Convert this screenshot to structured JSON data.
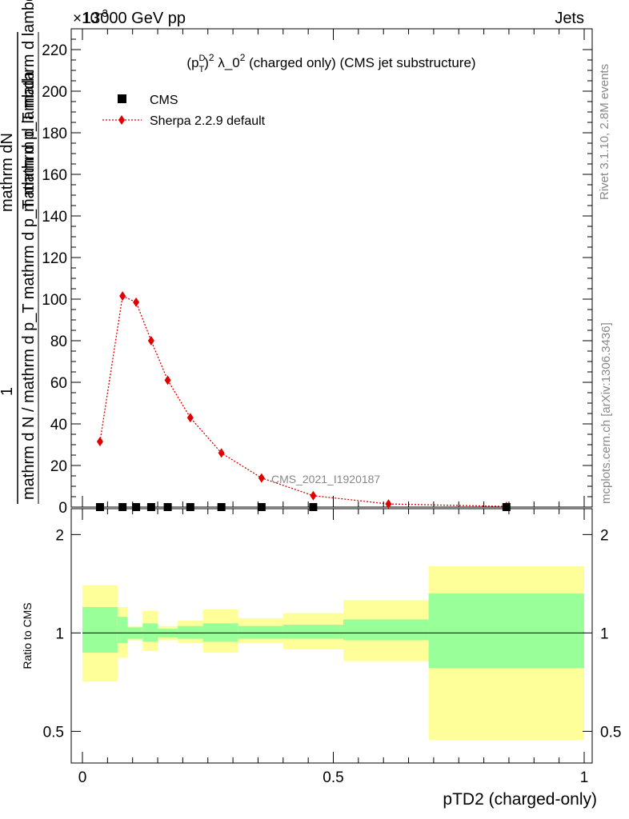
{
  "header": {
    "left": "13000 GeV pp",
    "right": "Jets",
    "multiplier": "×10",
    "multiplier_exp": "-3"
  },
  "side_labels": {
    "rivet": "Rivet 3.1.10,  2.8M events",
    "mcplots": "mcplots.cern.ch [arXiv:1306.3436]"
  },
  "plot_title": {
    "p": "(p",
    "sup_d": "D",
    "sub_t": "T",
    "rest1": ")",
    "sup2": "2",
    "rest2": " λ_0",
    "sup3": "2",
    "rest3": " (charged only) (CMS jet substructure)"
  },
  "ylabel": {
    "num": "mathrm dN",
    "num_full": "mathrm d p_T mathrm d lambda",
    "num_T": "T",
    "one": "1",
    "den": "mathrm d N / mathrm d p_T mathrm d p_T mathrm d lambda"
  },
  "analysis_tag": "CMS_2021_I1920187",
  "ratio_ylabel": "Ratio to CMS",
  "xlabel": "pTD2 (charged-only)",
  "legend": {
    "cms": "CMS",
    "sherpa": "Sherpa 2.2.9 default"
  },
  "colors": {
    "sherpa": "#e00000",
    "cms": "#000000",
    "band_inner": "#99ff99",
    "band_outer": "#ffff99"
  },
  "chart_data": {
    "type": "line",
    "x_range": [
      0,
      1
    ],
    "main": {
      "ylim": [
        0,
        230
      ],
      "yticks": [
        0,
        20,
        40,
        60,
        80,
        100,
        120,
        140,
        160,
        180,
        200,
        220
      ],
      "ytick_labels": [
        "0",
        "20",
        "40",
        "60",
        "80",
        "100",
        "120",
        "140",
        "160",
        "180",
        "200",
        "220"
      ],
      "series": [
        {
          "name": "Sherpa 2.2.9 default",
          "x": [
            0.035,
            0.08,
            0.107,
            0.137,
            0.17,
            0.215,
            0.277,
            0.357,
            0.46,
            0.61,
            0.845
          ],
          "y": [
            31.5,
            101.5,
            98.5,
            80,
            61,
            43,
            26,
            14,
            5.5,
            1.5,
            0.3
          ]
        },
        {
          "name": "CMS",
          "x": [
            0.035,
            0.08,
            0.107,
            0.137,
            0.17,
            0.215,
            0.277,
            0.357,
            0.46,
            0.845
          ],
          "y": [
            0,
            0,
            0,
            0,
            0,
            0,
            0,
            0,
            0,
            0
          ]
        }
      ]
    },
    "ratio": {
      "scale": "log",
      "ylim": [
        0.4,
        2.4
      ],
      "yticks": [
        0.5,
        1,
        2
      ],
      "ytick_labels": [
        "0.5",
        "1",
        "2"
      ],
      "bands": [
        {
          "x0": 0.0,
          "x1": 0.07,
          "in_lo": 0.87,
          "in_hi": 1.2,
          "out_lo": 0.71,
          "out_hi": 1.4
        },
        {
          "x0": 0.07,
          "x1": 0.09,
          "in_lo": 0.93,
          "in_hi": 1.12,
          "out_lo": 0.84,
          "out_hi": 1.2
        },
        {
          "x0": 0.09,
          "x1": 0.12,
          "in_lo": 0.96,
          "in_hi": 1.04,
          "out_lo": 0.95,
          "out_hi": 1.05
        },
        {
          "x0": 0.12,
          "x1": 0.15,
          "in_lo": 0.94,
          "in_hi": 1.07,
          "out_lo": 0.88,
          "out_hi": 1.17
        },
        {
          "x0": 0.15,
          "x1": 0.19,
          "in_lo": 0.97,
          "in_hi": 1.03,
          "out_lo": 0.95,
          "out_hi": 1.05
        },
        {
          "x0": 0.19,
          "x1": 0.24,
          "in_lo": 0.96,
          "in_hi": 1.05,
          "out_lo": 0.93,
          "out_hi": 1.09
        },
        {
          "x0": 0.24,
          "x1": 0.31,
          "in_lo": 0.94,
          "in_hi": 1.07,
          "out_lo": 0.87,
          "out_hi": 1.18
        },
        {
          "x0": 0.31,
          "x1": 0.4,
          "in_lo": 0.96,
          "in_hi": 1.05,
          "out_lo": 0.93,
          "out_hi": 1.11
        },
        {
          "x0": 0.4,
          "x1": 0.52,
          "in_lo": 0.96,
          "in_hi": 1.06,
          "out_lo": 0.89,
          "out_hi": 1.15
        },
        {
          "x0": 0.52,
          "x1": 0.69,
          "in_lo": 0.95,
          "in_hi": 1.1,
          "out_lo": 0.82,
          "out_hi": 1.26
        },
        {
          "x0": 0.69,
          "x1": 1.0,
          "in_lo": 0.78,
          "in_hi": 1.32,
          "out_lo": 0.47,
          "out_hi": 1.6
        }
      ]
    },
    "xticks": [
      0,
      0.5,
      1
    ],
    "xtick_labels": [
      "0",
      "0.5",
      "1"
    ],
    "legend_position": "top-left"
  }
}
